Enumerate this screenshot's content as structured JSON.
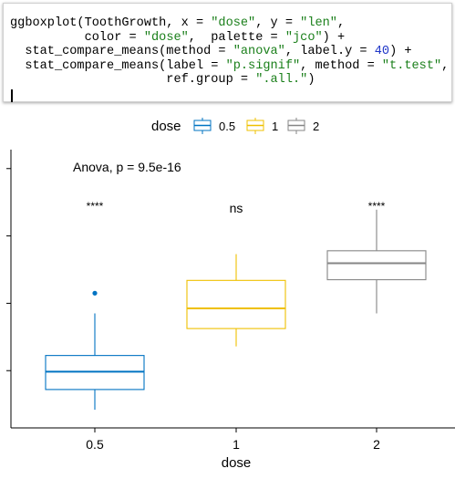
{
  "editor": {
    "lines": [
      [
        {
          "t": "ggboxplot(ToothGrowth, x = ",
          "c": "plain"
        },
        {
          "t": "\"dose\"",
          "c": "str"
        },
        {
          "t": ", y = ",
          "c": "plain"
        },
        {
          "t": "\"len\"",
          "c": "str"
        },
        {
          "t": ",",
          "c": "plain"
        }
      ],
      [
        {
          "t": "          color = ",
          "c": "plain"
        },
        {
          "t": "\"dose\"",
          "c": "str"
        },
        {
          "t": ",  palette = ",
          "c": "plain"
        },
        {
          "t": "\"jco\"",
          "c": "str"
        },
        {
          "t": ") +",
          "c": "plain"
        }
      ],
      [
        {
          "t": "  stat_compare_means(method = ",
          "c": "plain"
        },
        {
          "t": "\"anova\"",
          "c": "str"
        },
        {
          "t": ", label.y = ",
          "c": "plain"
        },
        {
          "t": "40",
          "c": "num"
        },
        {
          "t": ") +",
          "c": "plain"
        }
      ],
      [
        {
          "t": "  stat_compare_means(label = ",
          "c": "plain"
        },
        {
          "t": "\"p.signif\"",
          "c": "str"
        },
        {
          "t": ", method = ",
          "c": "plain"
        },
        {
          "t": "\"t.test\"",
          "c": "str"
        },
        {
          "t": ",",
          "c": "plain"
        }
      ],
      [
        {
          "t": "                     ref.group = ",
          "c": "plain"
        },
        {
          "t": "\".all.\"",
          "c": "str"
        },
        {
          "t": ")",
          "c": "plain"
        }
      ]
    ]
  },
  "chart_data": {
    "type": "box",
    "title": "",
    "xlabel": "dose",
    "ylabel": "",
    "categories": [
      "0.5",
      "1",
      "2"
    ],
    "ylim": [
      1.5,
      42
    ],
    "legend": {
      "title": "dose",
      "position": "top",
      "entries": [
        "0.5",
        "1",
        "2"
      ]
    },
    "palette": {
      "0.5": "#0073C2",
      "1": "#EFC000",
      "2": "#868686"
    },
    "boxes": [
      {
        "category": "0.5",
        "whisker_low": 4.2,
        "q1": 7.2,
        "median": 9.85,
        "q3": 12.25,
        "whisker_high": 18.5,
        "outliers": [
          21.5
        ]
      },
      {
        "category": "1",
        "whisker_low": 13.6,
        "q1": 16.25,
        "median": 19.25,
        "q3": 23.4,
        "whisker_high": 27.3,
        "outliers": []
      },
      {
        "category": "2",
        "whisker_low": 18.5,
        "q1": 23.5,
        "median": 25.95,
        "q3": 27.8,
        "whisker_high": 33.9,
        "outliers": []
      }
    ],
    "annotations": {
      "anova": "Anova, p = 9.5e-16",
      "signif": [
        "****",
        "ns",
        "****"
      ]
    },
    "grid": false
  }
}
